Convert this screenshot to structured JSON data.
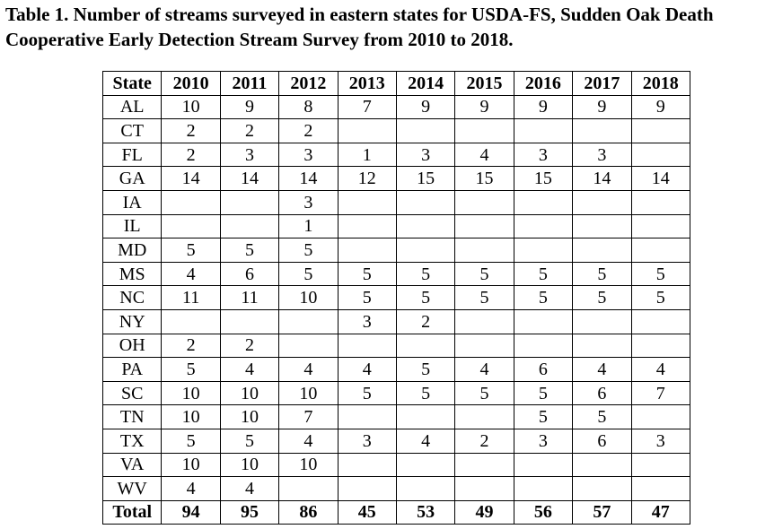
{
  "caption": {
    "line1": "Table 1. Number of streams surveyed in eastern states for USDA-FS, Sudden Oak Death",
    "line2": "Cooperative Early Detection Stream Survey from 2010 to 2018."
  },
  "table": {
    "headers": [
      "State",
      "2010",
      "2011",
      "2012",
      "2013",
      "2014",
      "2015",
      "2016",
      "2017",
      "2018"
    ],
    "rows": [
      [
        "AL",
        "10",
        "9",
        "8",
        "7",
        "9",
        "9",
        "9",
        "9",
        "9"
      ],
      [
        "CT",
        "2",
        "2",
        "2",
        "",
        "",
        "",
        "",
        "",
        ""
      ],
      [
        "FL",
        "2",
        "3",
        "3",
        "1",
        "3",
        "4",
        "3",
        "3",
        ""
      ],
      [
        "GA",
        "14",
        "14",
        "14",
        "12",
        "15",
        "15",
        "15",
        "14",
        "14"
      ],
      [
        "IA",
        "",
        "",
        "3",
        "",
        "",
        "",
        "",
        "",
        ""
      ],
      [
        "IL",
        "",
        "",
        "1",
        "",
        "",
        "",
        "",
        "",
        ""
      ],
      [
        "MD",
        "5",
        "5",
        "5",
        "",
        "",
        "",
        "",
        "",
        ""
      ],
      [
        "MS",
        "4",
        "6",
        "5",
        "5",
        "5",
        "5",
        "5",
        "5",
        "5"
      ],
      [
        "NC",
        "11",
        "11",
        "10",
        "5",
        "5",
        "5",
        "5",
        "5",
        "5"
      ],
      [
        "NY",
        "",
        "",
        "",
        "3",
        "2",
        "",
        "",
        "",
        ""
      ],
      [
        "OH",
        "2",
        "2",
        "",
        "",
        "",
        "",
        "",
        "",
        ""
      ],
      [
        "PA",
        "5",
        "4",
        "4",
        "4",
        "5",
        "4",
        "6",
        "4",
        "4"
      ],
      [
        "SC",
        "10",
        "10",
        "10",
        "5",
        "5",
        "5",
        "5",
        "6",
        "7"
      ],
      [
        "TN",
        "10",
        "10",
        "7",
        "",
        "",
        "",
        "5",
        "5",
        ""
      ],
      [
        "TX",
        "5",
        "5",
        "4",
        "3",
        "4",
        "2",
        "3",
        "6",
        "3"
      ],
      [
        "VA",
        "10",
        "10",
        "10",
        "",
        "",
        "",
        "",
        "",
        ""
      ],
      [
        "WV",
        "4",
        "4",
        "",
        "",
        "",
        "",
        "",
        "",
        ""
      ]
    ],
    "total": [
      "Total",
      "94",
      "95",
      "86",
      "45",
      "53",
      "49",
      "56",
      "57",
      "47"
    ]
  }
}
